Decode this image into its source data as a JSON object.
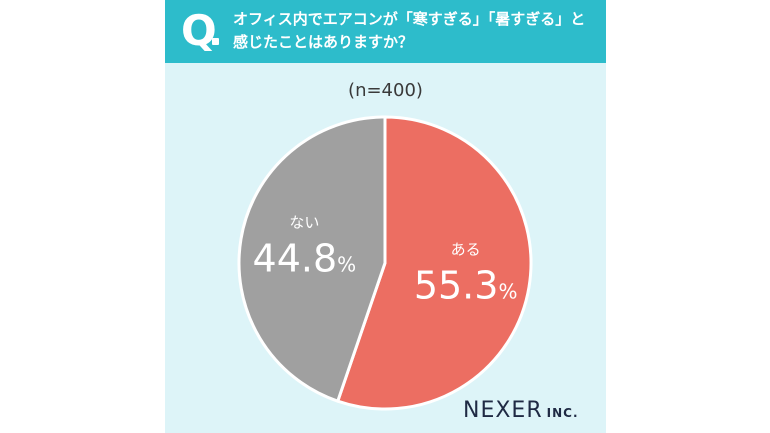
{
  "header": {
    "q_letter": "Q",
    "question": "オフィス内でエアコンが「寒すぎる」「暑すぎる」と\n感じたことはありますか？"
  },
  "sample_label": "(n=400)",
  "brand": {
    "name": "NEXER",
    "suffix": "INC."
  },
  "colors": {
    "header": "#2dbccb",
    "background": "#ddf4f8",
    "aru": "#ec6e62",
    "nai": "#a0a0a0"
  },
  "chart_data": {
    "type": "pie",
    "slices": [
      {
        "label": "ある",
        "value": 55.3,
        "display": "55.3",
        "unit": "%",
        "color": "#ec6e62"
      },
      {
        "label": "ない",
        "value": 44.8,
        "display": "44.8",
        "unit": "%",
        "color": "#a0a0a0"
      }
    ]
  }
}
